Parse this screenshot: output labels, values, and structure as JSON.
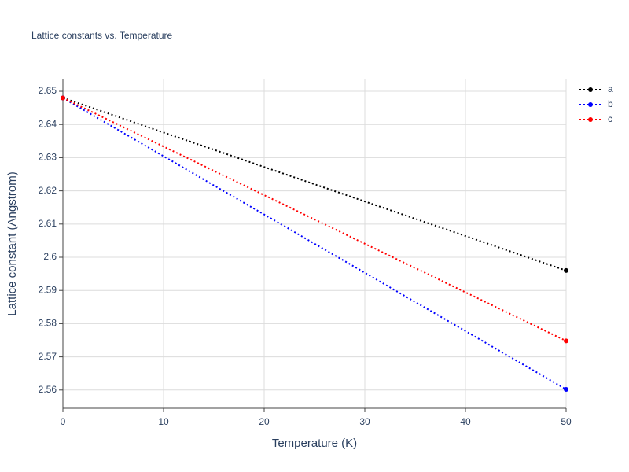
{
  "chart_data": {
    "type": "line",
    "title": "Lattice constants vs. Temperature",
    "x_label": "Temperature (K)",
    "y_label": "Lattice constant (Angstrom)",
    "x": [
      0,
      50
    ],
    "series": [
      {
        "name": "a",
        "color": "#000000",
        "values": [
          2.648,
          2.596
        ]
      },
      {
        "name": "b",
        "color": "#0000ff",
        "values": [
          2.648,
          2.5602
        ]
      },
      {
        "name": "c",
        "color": "#ff0000",
        "values": [
          2.648,
          2.5748
        ]
      }
    ],
    "xlim": [
      0,
      50
    ],
    "xticks": [
      0,
      10,
      20,
      30,
      40,
      50
    ],
    "ylim": [
      2.5545,
      2.6538
    ],
    "yticks": [
      2.56,
      2.57,
      2.58,
      2.59,
      2.6,
      2.61,
      2.62,
      2.63,
      2.64,
      2.65
    ],
    "grid": true,
    "legend": "right",
    "line_style": "dotted"
  }
}
